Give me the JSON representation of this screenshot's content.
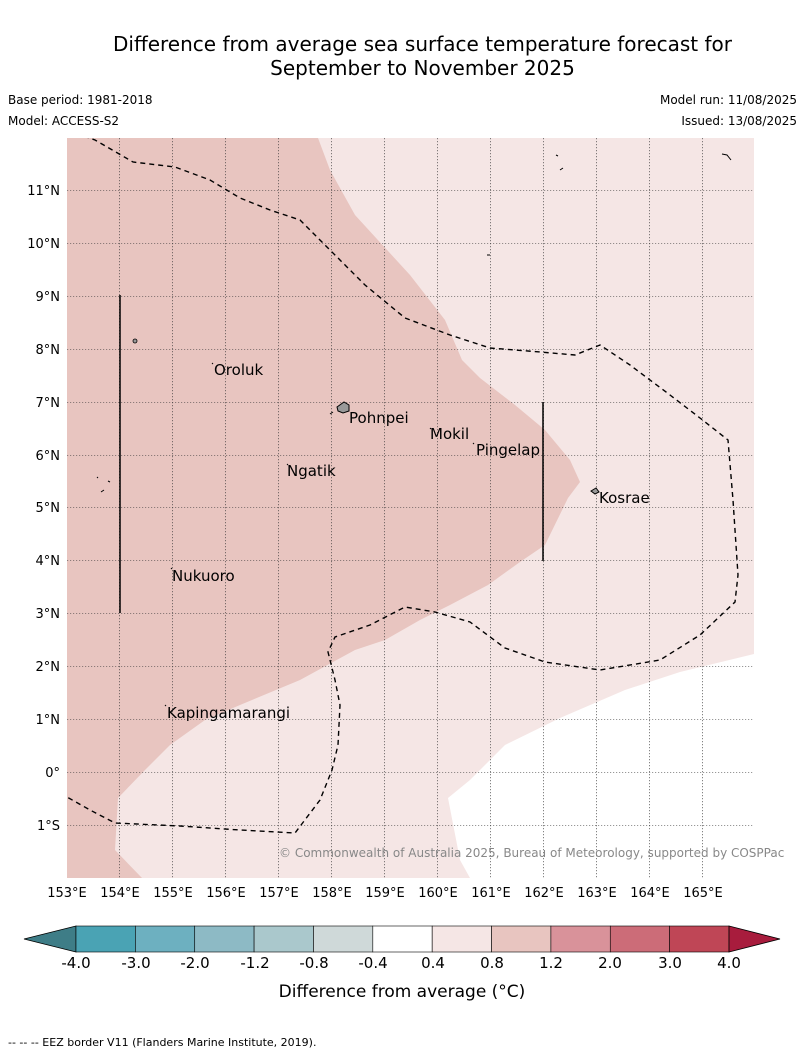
{
  "title_line1": "Difference from average sea surface temperature forecast for",
  "title_line2": "September to November 2025",
  "base_period": "Base period: 1981-2018",
  "model": "Model: ACCESS-S2",
  "model_run": "Model run: 11/08/2025",
  "issued": "Issued: 13/08/2025",
  "copyright": "© Commonwealth of Australia 2025, Bureau of Meteorology, supported by COSPPac",
  "footnote": "--  --  -- EEZ border V11 (Flanders Marine Institute, 2019).",
  "lon_labels": [
    "153°E",
    "154°E",
    "155°E",
    "156°E",
    "157°E",
    "158°E",
    "159°E",
    "160°E",
    "161°E",
    "162°E",
    "163°E",
    "164°E",
    "165°E"
  ],
  "lat_labels": [
    "11°N",
    "10°N",
    "9°N",
    "8°N",
    "7°N",
    "6°N",
    "5°N",
    "4°N",
    "3°N",
    "2°N",
    "1°N",
    "0°",
    "1°S"
  ],
  "places": [
    "Oroluk",
    "Pohnpei",
    "Mokil",
    "Pingelap",
    "Ngatik",
    "Kosrae",
    "Nukuoro",
    "Kapingamarangi"
  ],
  "colorbar": {
    "title": "Difference from average (°C)",
    "labels": [
      "-4.0",
      "-3.0",
      "-2.0",
      "-1.2",
      "-0.8",
      "-0.4",
      "0.4",
      "0.8",
      "1.2",
      "2.0",
      "3.0",
      "4.0"
    ],
    "colors": [
      "#3e7d87",
      "#4aa3b4",
      "#6db0c0",
      "#8dbac5",
      "#aac8cc",
      "#cfd9d9",
      "#ffffff",
      "#f5e6e5",
      "#e8c5c0",
      "#d9929a",
      "#cc6c78",
      "#bf4656",
      "#a81c3d"
    ]
  }
}
